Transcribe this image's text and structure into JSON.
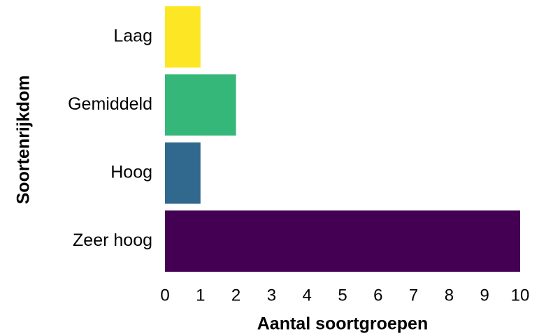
{
  "chart_data": {
    "type": "bar",
    "orientation": "horizontal",
    "categories": [
      "Laag",
      "Gemiddeld",
      "Hoog",
      "Zeer hoog"
    ],
    "values": [
      1,
      2,
      1,
      10
    ],
    "colors": [
      "#fde725",
      "#35b779",
      "#31688e",
      "#440154"
    ],
    "xlim": [
      0,
      10
    ],
    "xticks": [
      0,
      1,
      2,
      3,
      4,
      5,
      6,
      7,
      8,
      9,
      10
    ],
    "xlabel": "Aantal soortgroepen",
    "ylabel": "Soortenrijkdom",
    "grid": false
  }
}
